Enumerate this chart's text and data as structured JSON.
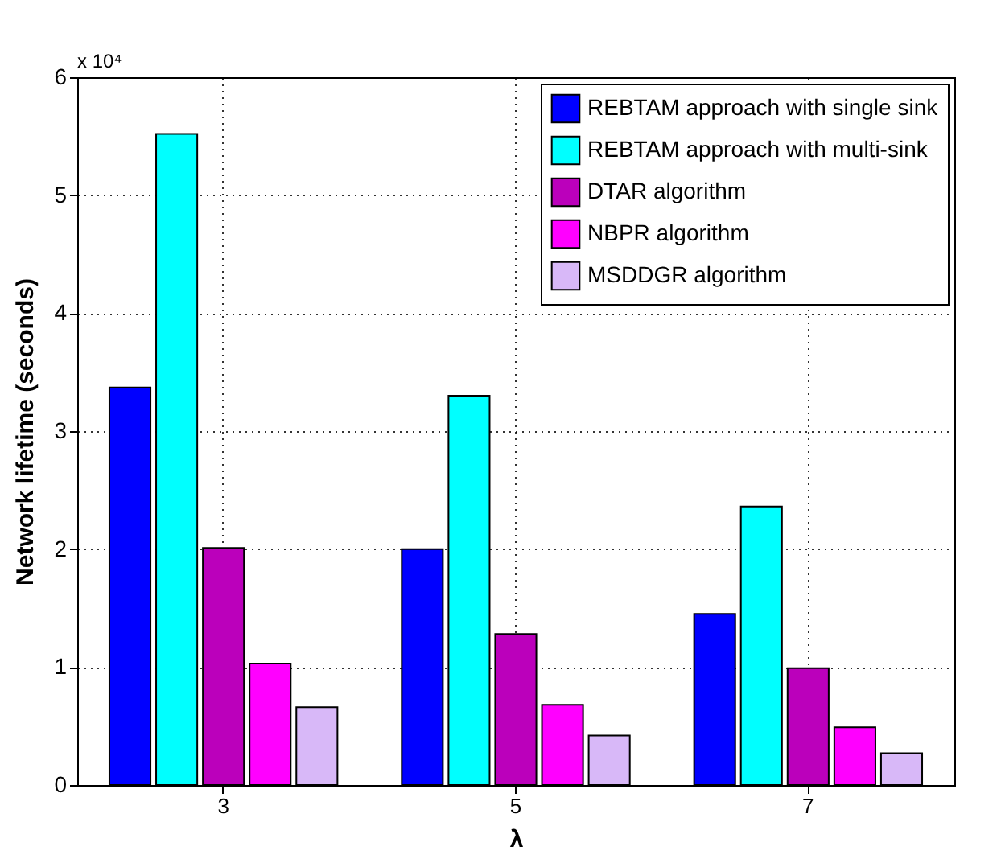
{
  "chart_data": {
    "type": "bar",
    "xlabel": "λ",
    "ylabel": "Network lifetime (seconds)",
    "annotations": [
      "x 10⁴"
    ],
    "categories": [
      "3",
      "5",
      "7"
    ],
    "series": [
      {
        "name": "REBTAM approach with single sink",
        "color": "#0000ff",
        "values": [
          3.37,
          2.0,
          1.45
        ]
      },
      {
        "name": "REBTAM approach with multi-sink",
        "color": "#00ffff",
        "values": [
          5.52,
          3.3,
          2.36
        ]
      },
      {
        "name": "DTAR algorithm",
        "color": "#bb00bb",
        "values": [
          2.01,
          1.28,
          0.99
        ]
      },
      {
        "name": "NBPR algorithm",
        "color": "#ff00ff",
        "values": [
          1.03,
          0.68,
          0.49
        ]
      },
      {
        "name": "MSDDGR algorithm",
        "color": "#d8b8f8",
        "values": [
          0.66,
          0.42,
          0.27
        ]
      }
    ],
    "ylim": [
      0,
      6
    ],
    "yticks": [
      0,
      1,
      2,
      3,
      4,
      5,
      6
    ],
    "grid": true,
    "legend": "top right"
  }
}
